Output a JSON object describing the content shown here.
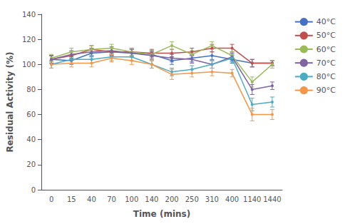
{
  "chart_data": {
    "type": "line",
    "xlabel": "Time (mins)",
    "ylabel": "Residual Activity (%)",
    "categories": [
      "0",
      "15",
      "40",
      "70",
      "100",
      "140",
      "200",
      "250",
      "310",
      "400",
      "1140",
      "1440"
    ],
    "series": [
      {
        "name": "40°C",
        "color": "#4472C4",
        "values": [
          104,
          103,
          109,
          110,
          109,
          108,
          103,
          105,
          107,
          104,
          101,
          101
        ],
        "errors": [
          3,
          3,
          3,
          3,
          3,
          3,
          3,
          3,
          3,
          3,
          3,
          2
        ]
      },
      {
        "name": "50°C",
        "color": "#C0504D",
        "values": [
          104,
          107,
          112,
          110,
          110,
          109,
          109,
          110,
          113,
          113,
          101,
          101
        ],
        "errors": [
          3,
          3,
          3,
          3,
          3,
          3,
          3,
          3,
          3,
          3,
          3,
          2
        ]
      },
      {
        "name": "60°C",
        "color": "#9BBB59",
        "values": [
          105,
          110,
          112,
          113,
          110,
          108,
          115,
          108,
          115,
          107,
          86,
          100
        ],
        "errors": [
          3,
          3,
          3,
          3,
          3,
          3,
          3,
          3,
          3,
          3,
          4,
          3
        ]
      },
      {
        "name": "70°C",
        "color": "#8064A2",
        "values": [
          104,
          108,
          110,
          111,
          109,
          107,
          105,
          104,
          100,
          106,
          80,
          83
        ],
        "errors": [
          3,
          3,
          3,
          3,
          3,
          3,
          3,
          3,
          3,
          3,
          4,
          3
        ]
      },
      {
        "name": "80°C",
        "color": "#4BACC6",
        "values": [
          100,
          104,
          104,
          106,
          106,
          100,
          94,
          96,
          100,
          105,
          68,
          70
        ],
        "errors": [
          3,
          3,
          3,
          3,
          3,
          3,
          3,
          3,
          3,
          3,
          5,
          4
        ]
      },
      {
        "name": "90°C",
        "color": "#F79646",
        "values": [
          100,
          101,
          101,
          105,
          103,
          100,
          92,
          93,
          94,
          93,
          60,
          60
        ],
        "errors": [
          3,
          3,
          3,
          3,
          3,
          3,
          4,
          3,
          3,
          3,
          5,
          4
        ]
      }
    ],
    "ylim": [
      0,
      140
    ],
    "yticks": [
      0,
      20,
      40,
      60,
      80,
      100,
      120,
      140
    ],
    "grid": false,
    "legend": "right",
    "marker": "circle"
  }
}
